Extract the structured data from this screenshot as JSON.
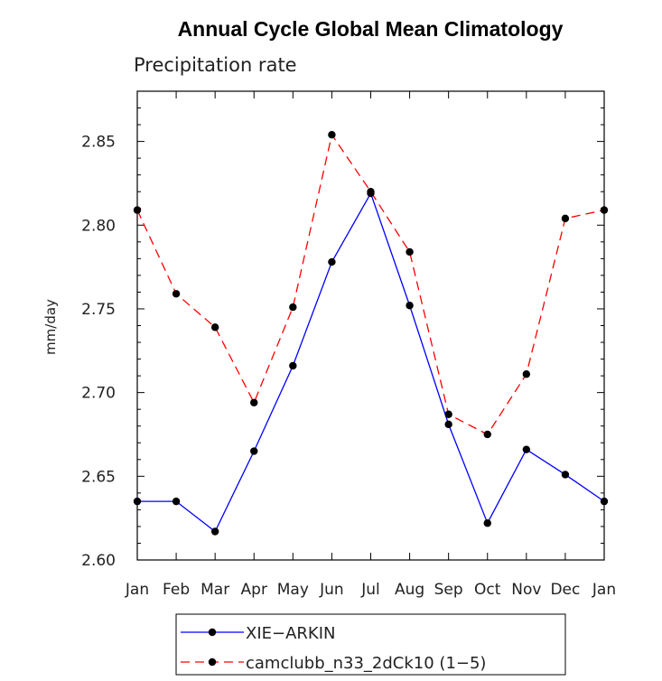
{
  "chart_data": {
    "type": "line",
    "title": "Annual Cycle Global Mean Climatology",
    "subtitle": "Precipitation rate",
    "xlabel": "",
    "ylabel": "mm/day",
    "categories": [
      "Jan",
      "Feb",
      "Mar",
      "Apr",
      "May",
      "Jun",
      "Jul",
      "Aug",
      "Sep",
      "Oct",
      "Nov",
      "Dec",
      "Jan"
    ],
    "yticks": [
      "2.60",
      "2.65",
      "2.70",
      "2.75",
      "2.80",
      "2.85"
    ],
    "ylim": [
      2.6,
      2.88
    ],
    "series": [
      {
        "name": "XIE−ARKIN",
        "color": "#0000ff",
        "dash": "solid",
        "values": [
          2.635,
          2.635,
          2.617,
          2.665,
          2.716,
          2.778,
          2.819,
          2.752,
          2.681,
          2.622,
          2.666,
          2.651,
          2.635
        ]
      },
      {
        "name": "camclubb_n33_2dCk10 (1−5)",
        "color": "#ff0000",
        "dash": "dashed",
        "values": [
          2.809,
          2.759,
          2.739,
          2.694,
          2.751,
          2.854,
          2.82,
          2.784,
          2.687,
          2.675,
          2.711,
          2.804,
          2.809
        ]
      }
    ]
  }
}
